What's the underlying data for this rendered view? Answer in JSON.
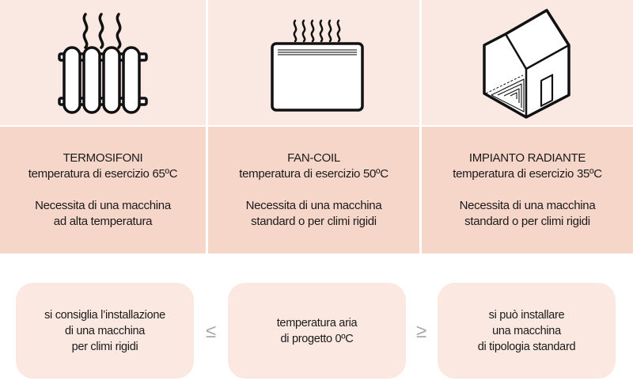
{
  "columns": [
    {
      "icon": "radiator-icon",
      "title": "TERMOSIFONI",
      "temperature": "temperatura di esercizio 65ºC",
      "note_line1": "Necessita di una macchina",
      "note_line2": "ad alta temperatura"
    },
    {
      "icon": "fan-coil-icon",
      "title": "FAN-COIL",
      "temperature": "temperatura di esercizio 50ºC",
      "note_line1": "Necessita di una macchina",
      "note_line2": "standard o per climi rigidi"
    },
    {
      "icon": "underfloor-heating-house-icon",
      "title": "IMPIANTO RADIANTE",
      "temperature": "temperatura di esercizio 35ºC",
      "note_line1": "Necessita di una macchina",
      "note_line2": "standard o per climi rigidi"
    }
  ],
  "bottom": {
    "left": [
      "si consiglia l’installazione",
      "di una macchina",
      "per climi rigidi"
    ],
    "center": [
      "temperatura aria",
      "di progetto 0ºC"
    ],
    "right": [
      "si può installare",
      "una macchina",
      "di tipologia standard"
    ],
    "less_equal": "≤",
    "greater_equal": "≥"
  },
  "colors": {
    "top_band": "#fae9e2",
    "middle_band": "#f7d6ca",
    "box": "#fbe8e1",
    "symbol": "#a8a8a8"
  }
}
